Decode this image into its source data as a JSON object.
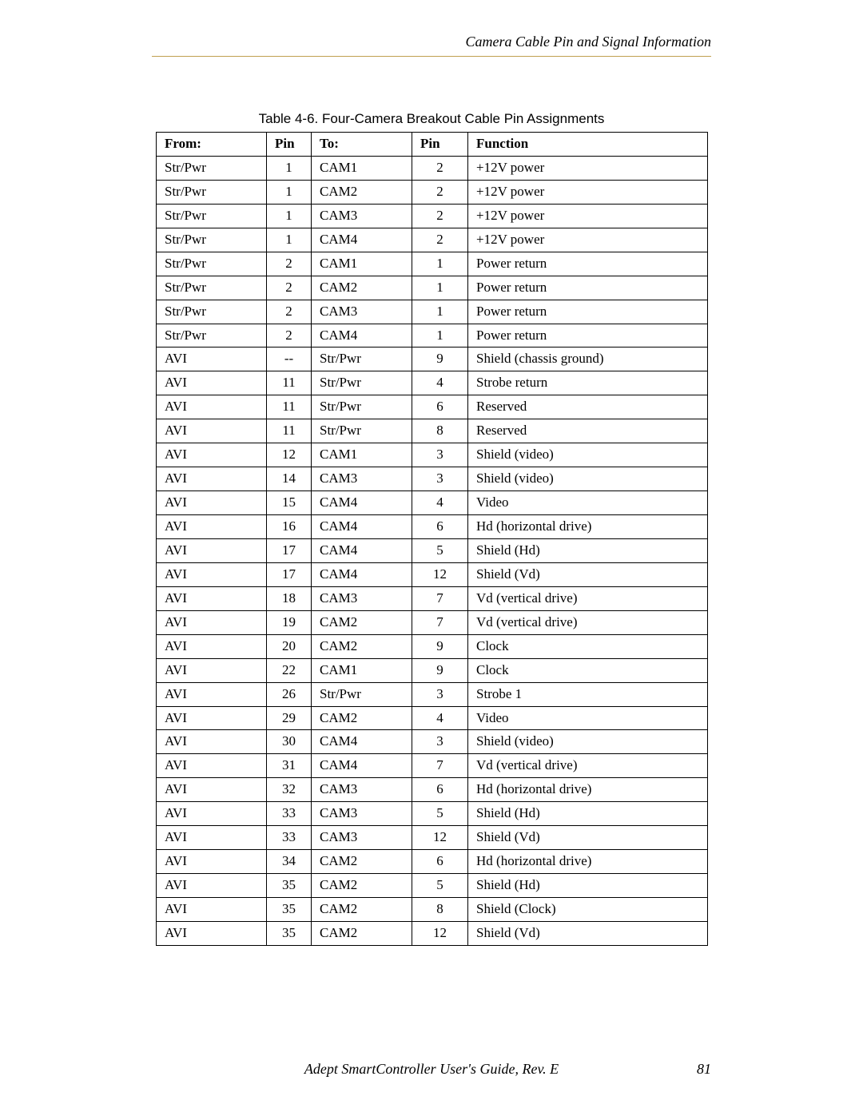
{
  "header": {
    "section_title": "Camera Cable Pin and Signal Information"
  },
  "caption": "Table 4-6. Four-Camera Breakout Cable Pin Assignments",
  "table": {
    "columns": [
      "From:",
      "Pin",
      "To:",
      "Pin",
      "Function"
    ],
    "rows": [
      [
        "Str/Pwr",
        "1",
        "CAM1",
        "2",
        "+12V power"
      ],
      [
        "Str/Pwr",
        "1",
        "CAM2",
        "2",
        "+12V power"
      ],
      [
        "Str/Pwr",
        "1",
        "CAM3",
        "2",
        "+12V power"
      ],
      [
        "Str/Pwr",
        "1",
        "CAM4",
        "2",
        "+12V power"
      ],
      [
        "Str/Pwr",
        "2",
        "CAM1",
        "1",
        "Power return"
      ],
      [
        "Str/Pwr",
        "2",
        "CAM2",
        "1",
        "Power return"
      ],
      [
        "Str/Pwr",
        "2",
        "CAM3",
        "1",
        "Power return"
      ],
      [
        "Str/Pwr",
        "2",
        "CAM4",
        "1",
        "Power return"
      ],
      [
        "AVI",
        "--",
        "Str/Pwr",
        "9",
        "Shield (chassis ground)"
      ],
      [
        "AVI",
        "11",
        "Str/Pwr",
        "4",
        "Strobe return"
      ],
      [
        "AVI",
        "11",
        "Str/Pwr",
        "6",
        "Reserved"
      ],
      [
        "AVI",
        "11",
        "Str/Pwr",
        "8",
        "Reserved"
      ],
      [
        "AVI",
        "12",
        "CAM1",
        "3",
        "Shield (video)"
      ],
      [
        "AVI",
        "14",
        "CAM3",
        "3",
        "Shield (video)"
      ],
      [
        "AVI",
        "15",
        "CAM4",
        "4",
        "Video"
      ],
      [
        "AVI",
        "16",
        "CAM4",
        "6",
        "Hd (horizontal drive)"
      ],
      [
        "AVI",
        "17",
        "CAM4",
        "5",
        "Shield (Hd)"
      ],
      [
        "AVI",
        "17",
        "CAM4",
        "12",
        "Shield (Vd)"
      ],
      [
        "AVI",
        "18",
        "CAM3",
        "7",
        "Vd (vertical drive)"
      ],
      [
        "AVI",
        "19",
        "CAM2",
        "7",
        "Vd (vertical drive)"
      ],
      [
        "AVI",
        "20",
        "CAM2",
        "9",
        "Clock"
      ],
      [
        "AVI",
        "22",
        "CAM1",
        "9",
        "Clock"
      ],
      [
        "AVI",
        "26",
        "Str/Pwr",
        "3",
        "Strobe 1"
      ],
      [
        "AVI",
        "29",
        "CAM2",
        "4",
        "Video"
      ],
      [
        "AVI",
        "30",
        "CAM4",
        "3",
        "Shield (video)"
      ],
      [
        "AVI",
        "31",
        "CAM4",
        "7",
        "Vd (vertical drive)"
      ],
      [
        "AVI",
        "32",
        "CAM3",
        "6",
        "Hd (horizontal drive)"
      ],
      [
        "AVI",
        "33",
        "CAM3",
        "5",
        "Shield (Hd)"
      ],
      [
        "AVI",
        "33",
        "CAM3",
        "12",
        "Shield (Vd)"
      ],
      [
        "AVI",
        "34",
        "CAM2",
        "6",
        "Hd (horizontal drive)"
      ],
      [
        "AVI",
        "35",
        "CAM2",
        "5",
        "Shield (Hd)"
      ],
      [
        "AVI",
        "35",
        "CAM2",
        "8",
        "Shield (Clock)"
      ],
      [
        "AVI",
        "35",
        "CAM2",
        "12",
        "Shield (Vd)"
      ]
    ]
  },
  "footer": {
    "doc_title": "Adept SmartController User's Guide, Rev. E",
    "page": "81"
  },
  "style": {
    "rule_color": "#c0a050",
    "font_body": "Palatino",
    "font_caption": "Arial",
    "font_size_body": 17,
    "font_size_header": 18
  }
}
